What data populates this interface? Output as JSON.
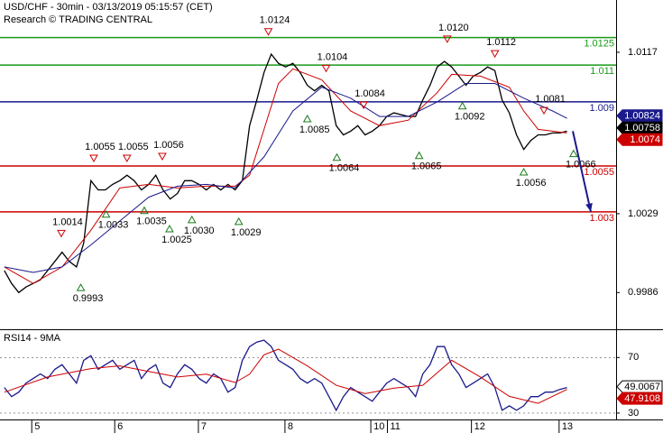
{
  "chart_data": [
    {
      "type": "line",
      "title": "USD/CHF - 30min - 03/13/2019 05:15:57 (CET)",
      "subtitle": "Research © TRADING CENTRAL",
      "xlim": [
        -0.6,
        84.8
      ],
      "ylim": [
        0.9966,
        1.01455
      ],
      "yticks": [
        1.0117,
        1.0029,
        0.9986
      ],
      "series": [
        {
          "color": "#000000",
          "values": [
            0.9998,
            0.9991,
            0.9986,
            0.9989,
            0.9991,
            0.9993,
            0.9998,
            1.0003,
            1.0008,
            1.0003,
            1.0,
            1.0013,
            1.0047,
            1.0042,
            1.0042,
            1.0045,
            1.0047,
            1.005,
            1.0047,
            1.0042,
            1.0045,
            1.005,
            1.0042,
            1.0037,
            1.004,
            1.0047,
            1.0047,
            1.0045,
            1.0042,
            1.0045,
            1.0042,
            1.0045,
            1.0042,
            1.0047,
            1.0077,
            1.0091,
            1.0106,
            1.0116,
            1.0111,
            1.0109,
            1.0111,
            1.0106,
            1.0099,
            1.0096,
            1.0099,
            1.0096,
            1.0077,
            1.0072,
            1.0074,
            1.0077,
            1.0072,
            1.0074,
            1.0077,
            1.0082,
            1.0084,
            1.0083,
            1.0082,
            1.0082,
            1.0091,
            1.0099,
            1.0109,
            1.0112,
            1.0109,
            1.0104,
            1.0099,
            1.0104,
            1.0106,
            1.0109,
            1.0107,
            1.0091,
            1.0084,
            1.0072,
            1.0064,
            1.0069,
            1.0072,
            1.0072,
            1.0073,
            1.0073,
            1.0074
          ]
        },
        {
          "color": "#cc0000",
          "x": [
            0,
            4,
            8,
            12,
            16,
            20,
            24,
            28,
            32,
            34,
            36,
            38,
            40,
            44,
            48,
            52,
            56,
            60,
            62,
            66,
            70,
            72,
            74,
            78
          ],
          "values": [
            1.0,
            0.9991,
            1.0,
            1.002,
            1.0043,
            1.0045,
            1.0043,
            1.0044,
            1.0044,
            1.005,
            1.0075,
            1.01,
            1.0108,
            1.0102,
            1.0085,
            1.0077,
            1.008,
            1.0095,
            1.0105,
            1.0104,
            1.0098,
            1.0085,
            1.0075,
            1.0073
          ]
        },
        {
          "color": "#1a1a8c",
          "x": [
            0,
            4,
            8,
            12,
            16,
            20,
            24,
            28,
            32,
            36,
            40,
            44,
            48,
            52,
            56,
            60,
            64,
            68,
            72,
            76,
            78
          ],
          "values": [
            1.0,
            0.9997,
            1.0,
            1.0012,
            1.0025,
            1.0038,
            1.0044,
            1.0045,
            1.0043,
            1.006,
            1.0085,
            1.0098,
            1.0092,
            1.0082,
            1.0082,
            1.009,
            1.01,
            1.01,
            1.0092,
            1.0085,
            1.0081
          ]
        }
      ],
      "levels": [
        {
          "value": 1.0125,
          "color": "#1a9a1a"
        },
        {
          "value": 1.011,
          "color": "#1a9a1a"
        },
        {
          "value": 1.009,
          "color": "#1a1a8c"
        },
        {
          "value": 1.0055,
          "color": "#cc0000"
        },
        {
          "value": 1.003,
          "color": "#cc0000"
        }
      ],
      "highs": [
        {
          "x": 7.9,
          "value": 1.0014
        },
        {
          "x": 12.4,
          "value": 1.0055
        },
        {
          "x": 17.0,
          "value": 1.0055
        },
        {
          "x": 21.9,
          "value": 1.0056
        },
        {
          "x": 36.6,
          "value": 1.0124
        },
        {
          "x": 44.6,
          "value": 1.0104
        },
        {
          "x": 49.8,
          "value": 1.0084
        },
        {
          "x": 61.4,
          "value": 1.012,
          "label": "1.0120"
        },
        {
          "x": 68.0,
          "value": 1.0112
        },
        {
          "x": 74.8,
          "value": 1.0081
        }
      ],
      "lows": [
        {
          "x": 10.6,
          "value": 0.9993
        },
        {
          "x": 14.1,
          "value": 1.0033
        },
        {
          "x": 19.4,
          "value": 1.0035
        },
        {
          "x": 22.9,
          "value": 1.0025
        },
        {
          "x": 26.0,
          "value": 1.003,
          "label": "1.0030"
        },
        {
          "x": 32.5,
          "value": 1.0029
        },
        {
          "x": 42.0,
          "value": 1.0085
        },
        {
          "x": 46.1,
          "value": 1.0064
        },
        {
          "x": 57.5,
          "value": 1.0065
        },
        {
          "x": 63.5,
          "value": 1.0092
        },
        {
          "x": 72.0,
          "value": 1.0056
        },
        {
          "x": 78.9,
          "value": 1.0066
        }
      ],
      "forecast": {
        "color": "#1a1a8c",
        "x": [
          78.8,
          81.3
        ],
        "values": [
          1.0074,
          1.003
        ]
      },
      "price_tags": [
        {
          "value": 1.00824,
          "color": "#1a1a8c"
        },
        {
          "value": 1.00758,
          "color": "#000000"
        },
        {
          "value": 1.0074,
          "color": "#cc0000"
        }
      ]
    },
    {
      "type": "line",
      "title": "RSI14 - 9MA",
      "xlim": [
        -0.6,
        84.8
      ],
      "xticks": [
        {
          "value": 3.8,
          "label": "5"
        },
        {
          "value": 15.3,
          "label": "6"
        },
        {
          "value": 26.9,
          "label": "7"
        },
        {
          "value": 38.9,
          "label": "8"
        },
        {
          "value": 50.8,
          "label": "10"
        },
        {
          "value": 53.1,
          "label": "11"
        },
        {
          "value": 64.75,
          "label": "12"
        },
        {
          "value": 76.9,
          "label": "13"
        }
      ],
      "ylim": [
        25.4,
        89.7
      ],
      "yticks": [
        70,
        30
      ],
      "grid": true,
      "series": [
        {
          "color": "#1a1a8c",
          "values": [
            48.4,
            41.8,
            45.1,
            51.6,
            54.9,
            58.2,
            54.9,
            61.5,
            64.8,
            58.2,
            51.6,
            68.0,
            71.3,
            61.5,
            64.8,
            68.0,
            61.5,
            64.8,
            68.0,
            54.9,
            61.5,
            64.8,
            51.6,
            48.4,
            58.2,
            64.8,
            61.5,
            54.9,
            51.6,
            58.2,
            54.9,
            45.1,
            48.4,
            68.0,
            77.9,
            81.1,
            82.5,
            77.9,
            68.0,
            64.8,
            61.5,
            54.9,
            51.6,
            54.9,
            51.6,
            41.8,
            32.0,
            41.8,
            48.4,
            45.1,
            41.8,
            38.5,
            45.1,
            51.6,
            54.9,
            51.6,
            48.4,
            41.8,
            58.2,
            64.8,
            77.9,
            77.9,
            64.8,
            58.2,
            48.4,
            51.6,
            54.9,
            58.2,
            48.4,
            32.0,
            35.2,
            32.0,
            35.2,
            41.8,
            41.8,
            45.1,
            45.1,
            47.0,
            48.4
          ]
        },
        {
          "color": "#cc0000",
          "x": [
            0,
            6,
            12,
            16,
            20,
            24,
            28,
            32,
            34,
            36,
            38,
            42,
            46,
            50,
            54,
            58,
            62,
            66,
            70,
            74,
            78
          ],
          "values": [
            45,
            56,
            62,
            64,
            60,
            56,
            58,
            52,
            58,
            72,
            76,
            64,
            50,
            44,
            48,
            50,
            68,
            56,
            42,
            37,
            47
          ]
        }
      ],
      "price_tags": [
        {
          "value": 49.0067,
          "color": "#ffffff"
        },
        {
          "value": 47.9108,
          "color": "#cc0000"
        }
      ]
    }
  ]
}
